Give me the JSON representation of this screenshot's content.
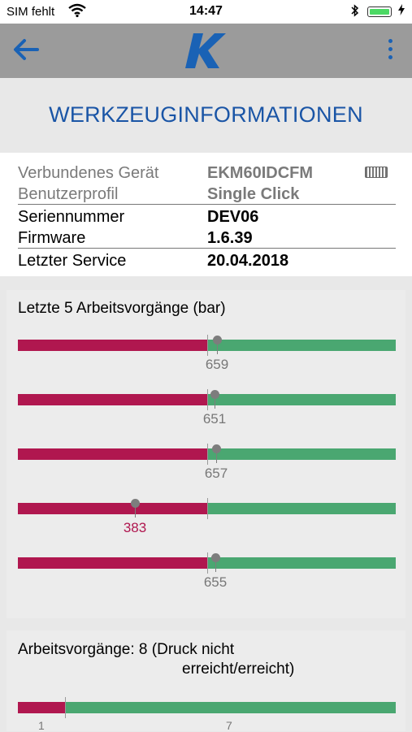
{
  "status_bar": {
    "carrier": "SIM fehlt",
    "time": "14:47"
  },
  "nav": {
    "back_icon": "arrow-left-icon",
    "logo": "K",
    "menu_icon": "more-vertical-icon"
  },
  "page_title": "WERKZEUGINFORMATIONEN",
  "device_info": [
    {
      "label": "Verbundenes Gerät",
      "value": "EKM60IDCFM"
    },
    {
      "label": "Benutzerprofil",
      "value": "Single Click"
    },
    {
      "label": "Seriennummer",
      "value": "DEV06"
    },
    {
      "label": "Firmware",
      "value": "1.6.39"
    },
    {
      "label": "Letzter Service",
      "value": "20.04.2018"
    }
  ],
  "last_operations": {
    "heading": "Letzte 5 Arbeitsvorgänge  (bar)",
    "threshold_fraction": 0.5,
    "items": [
      {
        "value": "659",
        "fraction": 0.526,
        "reached": true
      },
      {
        "value": "651",
        "fraction": 0.52,
        "reached": true
      },
      {
        "value": "657",
        "fraction": 0.524,
        "reached": true
      },
      {
        "value": "383",
        "fraction": 0.31,
        "reached": false
      },
      {
        "value": "655",
        "fraction": 0.523,
        "reached": true
      }
    ]
  },
  "operations_summary": {
    "heading_line1": "Arbeitsvorgänge: 8 (Druck nicht",
    "heading_line2": "erreicht/erreicht)",
    "not_reached": "1",
    "reached": "7"
  },
  "colors": {
    "red": "#b0174f",
    "green": "#4aa771",
    "title_blue": "#1a55a6"
  }
}
